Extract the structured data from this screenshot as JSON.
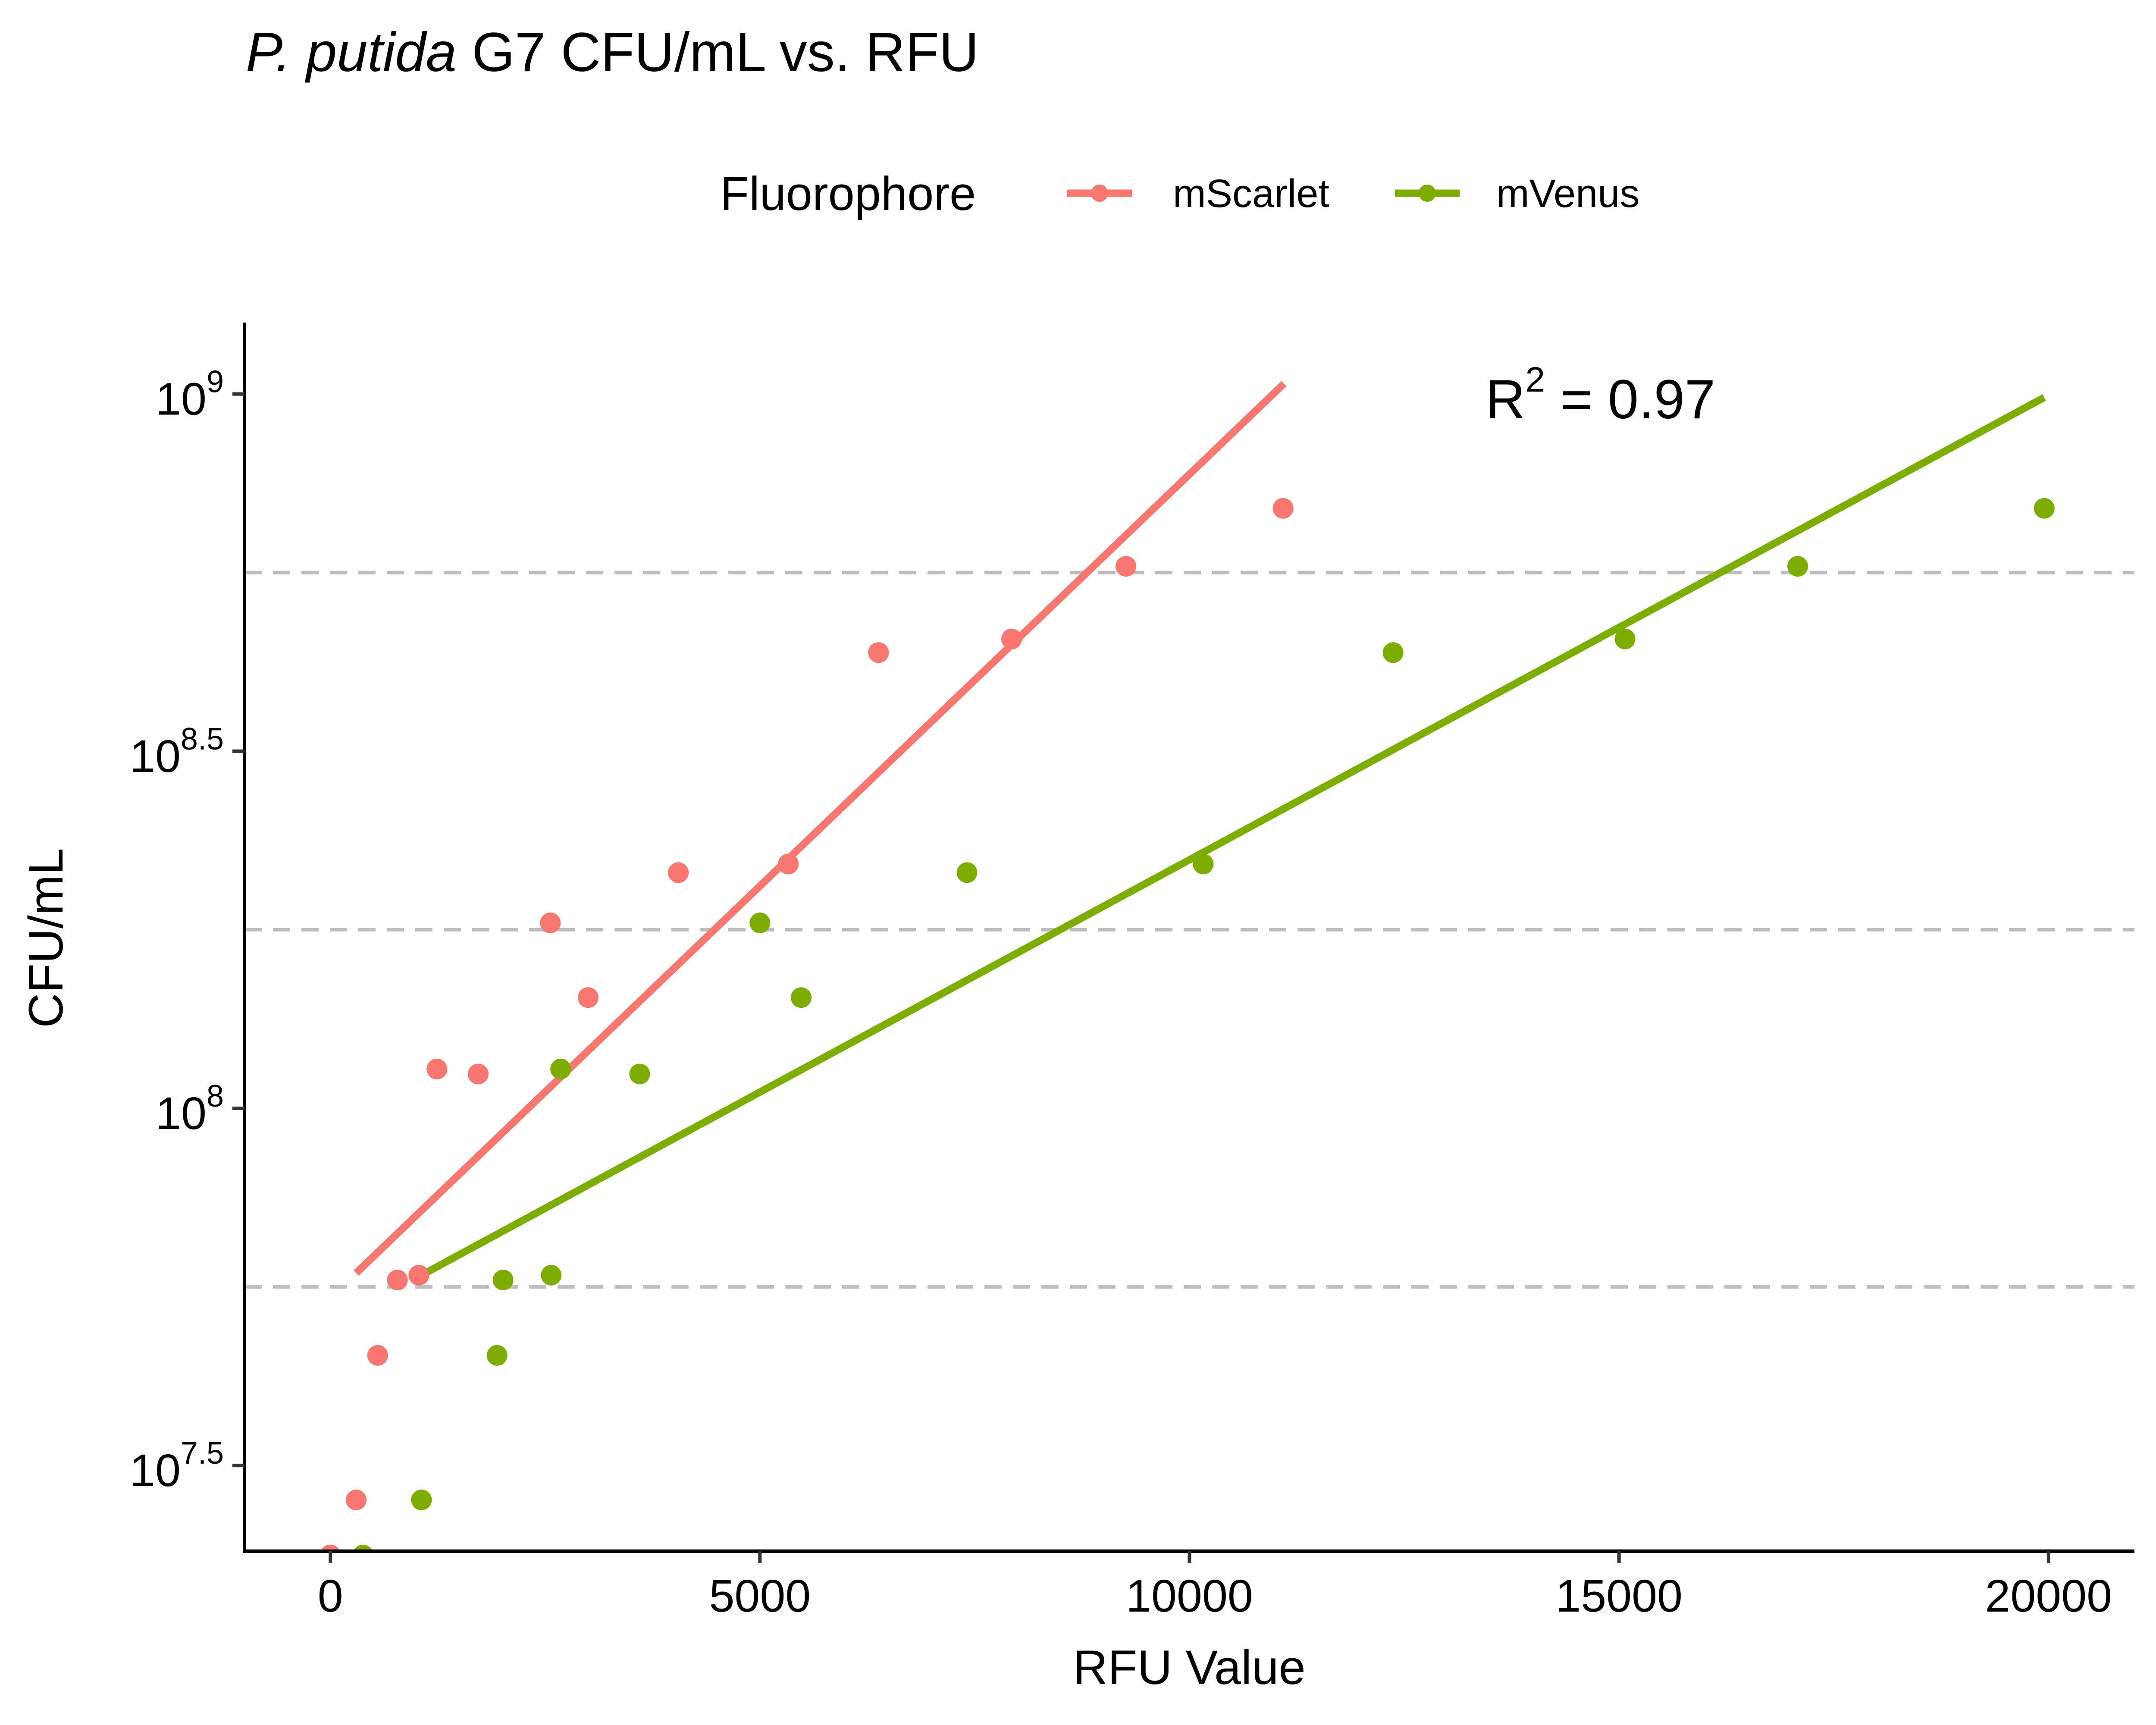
{
  "chart_data": {
    "type": "scatter",
    "title_italic": "P. putida",
    "title_rest": " G7 CFU/mL vs. RFU",
    "xlabel": "RFU Value",
    "ylabel": "CFU/mL",
    "y_scale": "log10",
    "xlim": [
      -1000,
      21000
    ],
    "ylim_log10": [
      7.38,
      9.1
    ],
    "x_ticks": [
      {
        "value": 0,
        "label": "0"
      },
      {
        "value": 5000,
        "label": "5000"
      },
      {
        "value": 10000,
        "label": "10000"
      },
      {
        "value": 15000,
        "label": "15000"
      },
      {
        "value": 20000,
        "label": "20000"
      }
    ],
    "y_ticks": [
      {
        "log10": 7.5,
        "base": "10",
        "exp": "7.5"
      },
      {
        "log10": 8.0,
        "base": "10",
        "exp": "8"
      },
      {
        "log10": 8.5,
        "base": "10",
        "exp": "8.5"
      },
      {
        "log10": 9.0,
        "base": "10",
        "exp": "9"
      }
    ],
    "reference_lines_log10": [
      7.75,
      8.25,
      8.75
    ],
    "legend": {
      "title": "Fluorophore",
      "position": "top"
    },
    "annotation": {
      "base": "R",
      "sup": "2",
      "rest": " = 0.97"
    },
    "series": [
      {
        "name": "mScarlet",
        "color": "#F8766D",
        "points": [
          {
            "x": 0,
            "y": 23700000
          },
          {
            "x": 300,
            "y": 28300000
          },
          {
            "x": 550,
            "y": 45100000
          },
          {
            "x": 780,
            "y": 57500000
          },
          {
            "x": 1030,
            "y": 58400000
          },
          {
            "x": 1240,
            "y": 113500000
          },
          {
            "x": 1720,
            "y": 111700000
          },
          {
            "x": 2560,
            "y": 181800000
          },
          {
            "x": 3000,
            "y": 142900000
          },
          {
            "x": 4050,
            "y": 213800000
          },
          {
            "x": 5330,
            "y": 219800000
          },
          {
            "x": 6380,
            "y": 434500000
          },
          {
            "x": 7930,
            "y": 454000000
          },
          {
            "x": 9260,
            "y": 573800000
          },
          {
            "x": 11090,
            "y": 691800000
          }
        ],
        "fit": {
          "x0": 300,
          "y0": 58800000,
          "x1": 11100,
          "y1": 1034000000
        }
      },
      {
        "name": "mVenus",
        "color": "#7CAE00",
        "points": [
          {
            "x": 380,
            "y": 23700000
          },
          {
            "x": 1060,
            "y": 28300000
          },
          {
            "x": 1940,
            "y": 45100000
          },
          {
            "x": 2010,
            "y": 57500000
          },
          {
            "x": 2570,
            "y": 58400000
          },
          {
            "x": 2680,
            "y": 113500000
          },
          {
            "x": 3600,
            "y": 111700000
          },
          {
            "x": 5000,
            "y": 181800000
          },
          {
            "x": 5480,
            "y": 142900000
          },
          {
            "x": 7410,
            "y": 213800000
          },
          {
            "x": 10160,
            "y": 219800000
          },
          {
            "x": 12370,
            "y": 434500000
          },
          {
            "x": 15070,
            "y": 454000000
          },
          {
            "x": 17080,
            "y": 573800000
          },
          {
            "x": 19950,
            "y": 691800000
          }
        ],
        "fit": {
          "x0": 1060,
          "y0": 58400000,
          "x1": 19950,
          "y1": 989000000
        }
      }
    ]
  }
}
